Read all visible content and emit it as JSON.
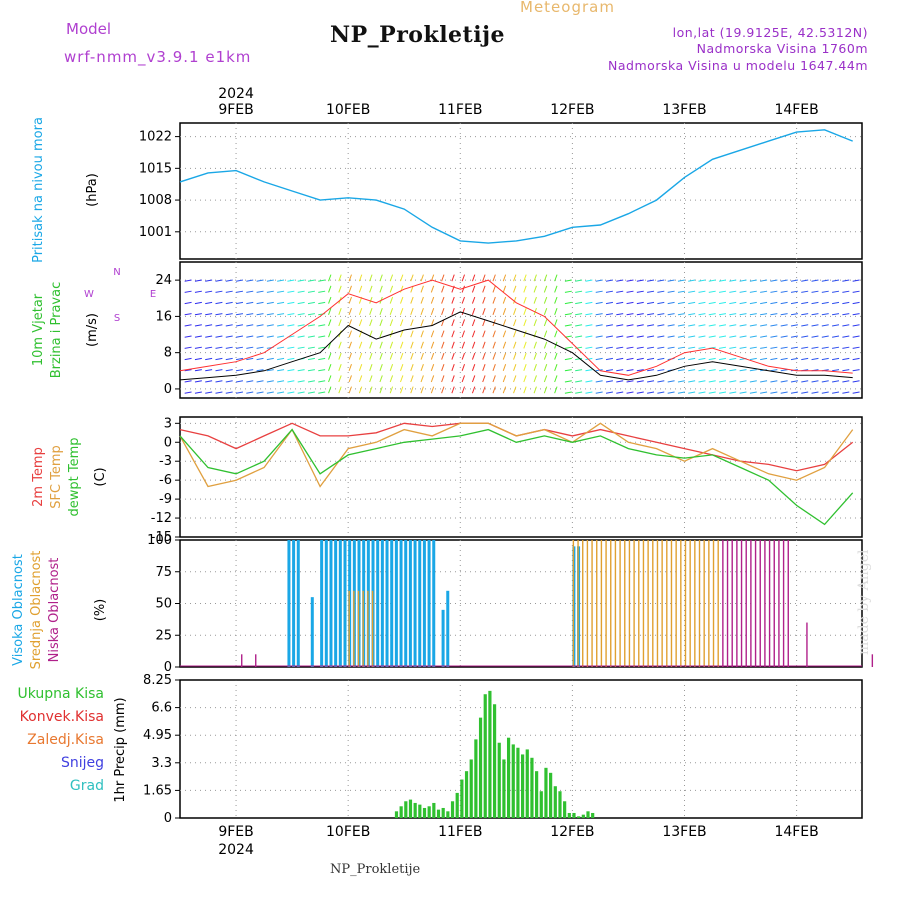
{
  "header": {
    "title": "NP_Prokletije",
    "meteogram": "Meteogram",
    "model_label": "Model",
    "model_name": "wrf-nmm_v3.9.1 e1km",
    "location": "lon,lat (19.9125E, 42.5312N)",
    "elevation": "Nadmorska Visina 1760m",
    "model_elevation": "Nadmorska Visina u modelu 1647.44m"
  },
  "footer": {
    "station": "NP_Prokletije",
    "credit": "made by Angel"
  },
  "time_axis": {
    "year": "2024",
    "day_labels": [
      "9FEB",
      "10FEB",
      "11FEB",
      "12FEB",
      "13FEB",
      "14FEB"
    ]
  },
  "colors": {
    "pressure": "#1aa7e6",
    "wind_speed": "#000000",
    "wind_gust": "#ff3030",
    "t2m": "#e84040",
    "tsfc": "#e0a040",
    "dewpoint": "#30c030",
    "cloud_high": "#1aa7e6",
    "cloud_mid": "#e0a030",
    "cloud_low": "#b0208a",
    "precip_total": "#30c030",
    "precip_conv": "#e03030",
    "precip_frozen": "#e87830",
    "snow": "#4040e0",
    "graupel": "#30c0c0"
  },
  "chart_data": [
    {
      "type": "line",
      "name": "pressure",
      "ylabel": [
        "Pritisak na nivou mora",
        "(hPa)"
      ],
      "yticks": [
        1001,
        1008,
        1015,
        1022
      ],
      "ylim": [
        995,
        1025
      ],
      "x_hours": [
        0,
        6,
        12,
        18,
        24,
        30,
        36,
        42,
        48,
        54,
        60,
        66,
        72,
        78,
        84,
        90,
        96,
        102,
        108,
        114,
        120,
        126,
        132,
        138,
        144
      ],
      "values": [
        1012,
        1014,
        1014.5,
        1012,
        1010,
        1008,
        1008.5,
        1008,
        1006,
        1002,
        999,
        998.5,
        999,
        1000,
        1002,
        1002.5,
        1005,
        1008,
        1013,
        1017,
        1019,
        1021,
        1023,
        1023.5,
        1021
      ]
    },
    {
      "type": "line",
      "name": "wind",
      "ylabel": [
        "10m Vjetar",
        "Brzina i Pravac",
        "(m/s)"
      ],
      "compass": [
        "N",
        "W",
        "E",
        "S"
      ],
      "yticks": [
        0,
        8,
        16,
        24
      ],
      "ylim": [
        -2,
        28
      ],
      "x_hours": [
        0,
        6,
        12,
        18,
        24,
        30,
        36,
        42,
        48,
        54,
        60,
        66,
        72,
        78,
        84,
        90,
        96,
        102,
        108,
        114,
        120,
        126,
        132,
        138,
        144
      ],
      "series": [
        {
          "name": "speed",
          "values": [
            2,
            2.5,
            3,
            4,
            6,
            8,
            14,
            11,
            13,
            14,
            17,
            15,
            13,
            11,
            8,
            3,
            2,
            3,
            5,
            6,
            5,
            4,
            3,
            3,
            2.5
          ]
        },
        {
          "name": "gust",
          "values": [
            4,
            5,
            6,
            8,
            12,
            16,
            21,
            19,
            22,
            24,
            22,
            24,
            19,
            16,
            10,
            4,
            3,
            5,
            8,
            9,
            7,
            5,
            4,
            4,
            3.5
          ]
        }
      ]
    },
    {
      "type": "line",
      "name": "temperature",
      "ylabel": [
        "2m Temp",
        "SFC Temp",
        "dewpt Temp",
        "(C)"
      ],
      "yticks": [
        3,
        0,
        -3,
        -6,
        -9,
        -12,
        -15
      ],
      "ylim": [
        -15,
        4
      ],
      "x_hours": [
        0,
        6,
        12,
        18,
        24,
        30,
        36,
        42,
        48,
        54,
        60,
        66,
        72,
        78,
        84,
        90,
        96,
        102,
        108,
        114,
        120,
        126,
        132,
        138,
        144
      ],
      "series": [
        {
          "name": "2m Temp",
          "values": [
            2,
            1,
            -1,
            1,
            3,
            1,
            1,
            1.5,
            3,
            2.5,
            3,
            3,
            1,
            2,
            1,
            2,
            1,
            0,
            -1,
            -2,
            -3,
            -3.5,
            -4.5,
            -3.5,
            0
          ]
        },
        {
          "name": "SFC Temp",
          "values": [
            1,
            -7,
            -6,
            -4,
            2,
            -7,
            -1,
            0,
            2,
            1,
            3,
            3,
            1,
            2,
            0,
            3,
            0,
            -1,
            -3,
            -1,
            -3,
            -5,
            -6,
            -4,
            2
          ]
        },
        {
          "name": "dewpt Temp",
          "values": [
            1,
            -4,
            -5,
            -3,
            2,
            -5,
            -2,
            -1,
            0,
            0.5,
            1,
            2,
            0,
            1,
            0,
            1,
            -1,
            -2,
            -2.5,
            -2,
            -4,
            -6,
            -10,
            -13,
            -8
          ]
        }
      ]
    },
    {
      "type": "bar",
      "name": "cloud_cover",
      "ylabel": [
        "Visoka Oblacnost",
        "Srednja Oblacnost",
        "Niska Oblacnost",
        "(%)"
      ],
      "yticks": [
        0,
        25,
        50,
        75,
        100
      ],
      "ylim": [
        0,
        100
      ],
      "series": [
        {
          "name": "Visoka Oblacnost",
          "segments": [
            [
              23,
              26,
              100
            ],
            [
              28,
              29,
              55
            ],
            [
              30,
              55,
              100
            ],
            [
              56,
              57,
              45
            ],
            [
              57,
              58,
              60
            ],
            [
              84,
              86,
              95
            ]
          ]
        },
        {
          "name": "Srednja Oblacnost",
          "segments": [
            [
              36,
              42,
              60
            ],
            [
              84,
              116,
              100
            ]
          ]
        },
        {
          "name": "Niska Oblacnost",
          "segments": [
            [
              13,
              14,
              10
            ],
            [
              16,
              17,
              10
            ],
            [
              116,
              131,
              100
            ],
            [
              134,
              135,
              35
            ],
            [
              148,
              149,
              10
            ]
          ]
        }
      ]
    },
    {
      "type": "bar",
      "name": "precipitation",
      "ylabel": [
        "1hr Precip (mm)"
      ],
      "legend": [
        "Ukupna Kisa",
        "Konvek.Kisa",
        "Zaledj.Kisa",
        "Snijeg",
        "Grad"
      ],
      "yticks": [
        0,
        1.65,
        3.3,
        4.95,
        6.6,
        8.25
      ],
      "ylim": [
        0,
        8.25
      ],
      "x_hours": [
        46,
        47,
        48,
        49,
        50,
        51,
        52,
        53,
        54,
        55,
        56,
        57,
        58,
        59,
        60,
        61,
        62,
        63,
        64,
        65,
        66,
        67,
        68,
        69,
        70,
        71,
        72,
        73,
        74,
        75,
        76,
        77,
        78,
        79,
        80,
        81,
        82,
        83,
        84,
        85,
        86,
        87,
        88
      ],
      "values": [
        0.4,
        0.7,
        1.0,
        1.1,
        0.9,
        0.8,
        0.6,
        0.7,
        0.9,
        0.5,
        0.6,
        0.4,
        1.0,
        1.5,
        2.3,
        2.8,
        3.5,
        4.7,
        6.0,
        7.4,
        7.6,
        6.8,
        4.5,
        3.5,
        4.8,
        4.4,
        4.2,
        3.8,
        4.1,
        3.6,
        2.8,
        1.6,
        3.0,
        2.7,
        1.9,
        1.6,
        1.0,
        0.3,
        0.3,
        0.1,
        0.2,
        0.4,
        0.3
      ]
    }
  ]
}
